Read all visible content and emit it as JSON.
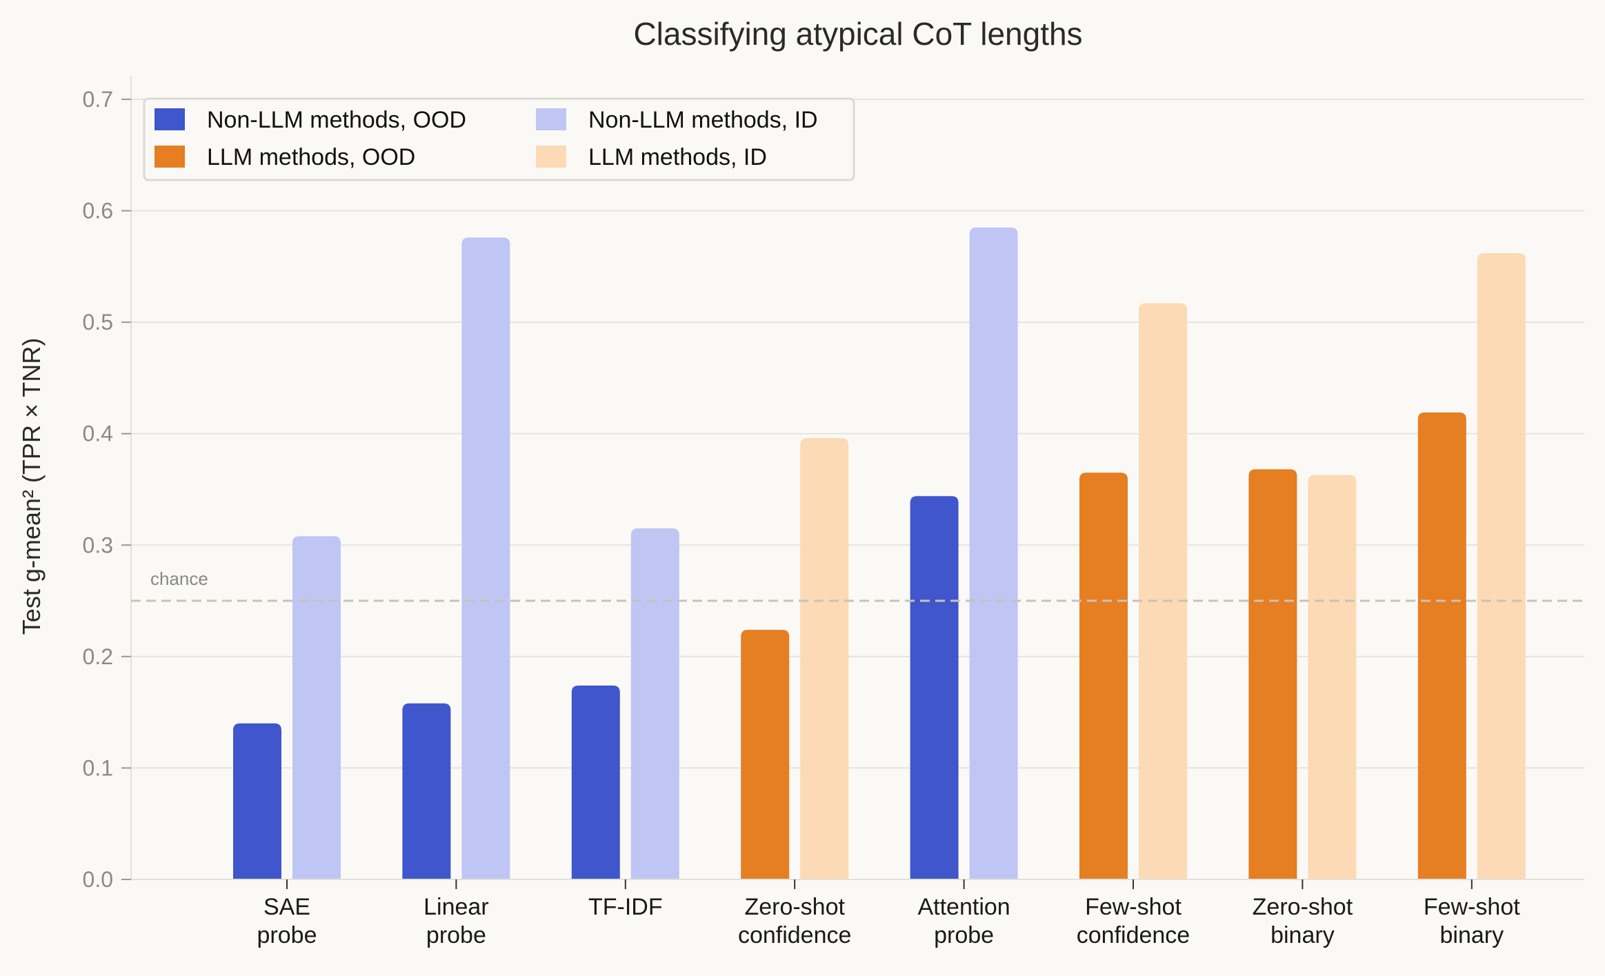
{
  "chart_data": {
    "type": "bar",
    "title": "Classifying atypical CoT lengths",
    "xlabel": "",
    "ylabel": "Test g-mean²  (TPR × TNR)",
    "ylim": [
      0,
      0.72
    ],
    "yticks": [
      "0.0",
      "0.1",
      "0.2",
      "0.3",
      "0.4",
      "0.5",
      "0.6",
      "0.7"
    ],
    "grid": "horizontal",
    "legend_placement": "top-left",
    "categories": [
      [
        "SAE",
        "probe"
      ],
      [
        "Linear",
        "probe"
      ],
      [
        "TF-IDF",
        ""
      ],
      [
        "Zero-shot",
        "confidence"
      ],
      [
        "Attention",
        "probe"
      ],
      [
        "Few-shot",
        "confidence"
      ],
      [
        "Zero-shot",
        "binary"
      ],
      [
        "Few-shot",
        "binary"
      ]
    ],
    "category_group": [
      "non-llm",
      "non-llm",
      "non-llm",
      "llm",
      "non-llm",
      "llm",
      "llm",
      "llm"
    ],
    "series": [
      {
        "name": "OOD",
        "values": [
          0.14,
          0.158,
          0.174,
          0.224,
          0.344,
          0.365,
          0.368,
          0.419
        ]
      },
      {
        "name": "ID",
        "values": [
          0.308,
          0.576,
          0.315,
          0.396,
          0.585,
          0.517,
          0.363,
          0.562
        ]
      }
    ],
    "legend": [
      {
        "label": "Non-LLM methods, OOD",
        "color": "#4056cc"
      },
      {
        "label": "LLM methods, OOD",
        "color": "#e67e22"
      },
      {
        "label": "Non-LLM methods, ID",
        "color": "#bfc6f4"
      },
      {
        "label": "LLM methods, ID",
        "color": "#fcdab5"
      }
    ],
    "colors": {
      "non-llm": {
        "OOD": "#4056cc",
        "ID": "#bfc6f4"
      },
      "llm": {
        "OOD": "#e67e22",
        "ID": "#fcdab5"
      }
    },
    "reference_line": {
      "value": 0.25,
      "label": "chance"
    }
  }
}
